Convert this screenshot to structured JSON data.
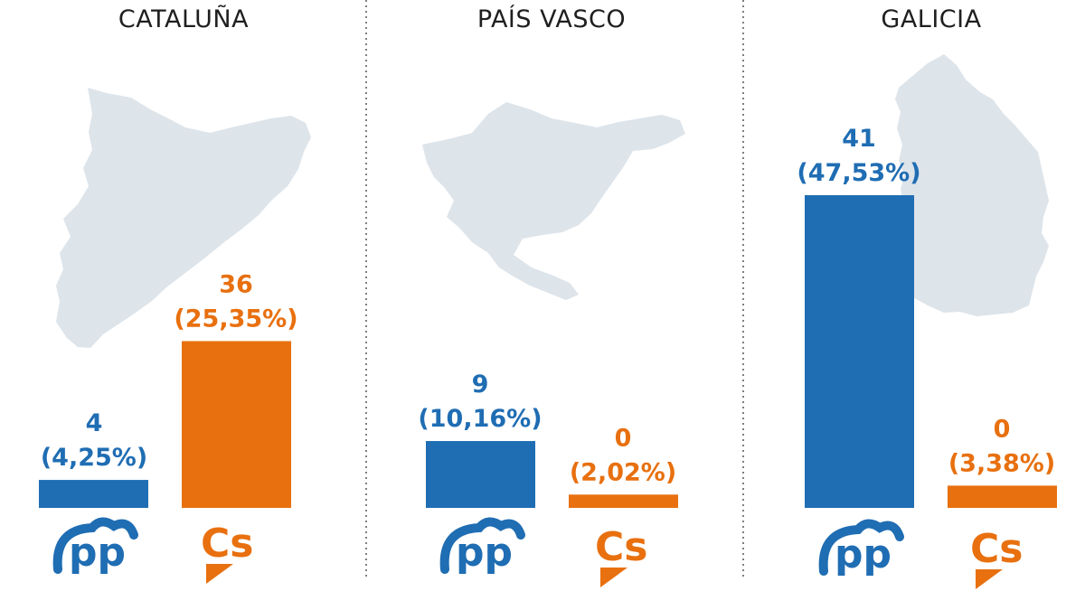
{
  "colors": {
    "pp": "#1f6db3",
    "cs": "#e8700f",
    "map": "#dde4ea",
    "divider": "#555555"
  },
  "logos": {
    "pp": "pp",
    "cs": "Cs"
  },
  "chart_data": {
    "type": "bar",
    "groups": [
      "CATALUÑA",
      "PAÍS VASCO",
      "GALICIA"
    ],
    "series": [
      {
        "name": "pp",
        "seats": [
          4,
          9,
          41
        ],
        "labels": [
          "(4,25%)",
          "(10,16%)",
          "(47,53%)"
        ]
      },
      {
        "name": "Cs",
        "seats": [
          36,
          0,
          0
        ],
        "labels": [
          "(25,35%)",
          "(2,02%)",
          "(3,38%)"
        ]
      }
    ],
    "percent_values": {
      "pp": [
        4.25,
        10.16,
        47.53
      ],
      "Cs": [
        25.35,
        2.02,
        3.38
      ]
    }
  }
}
